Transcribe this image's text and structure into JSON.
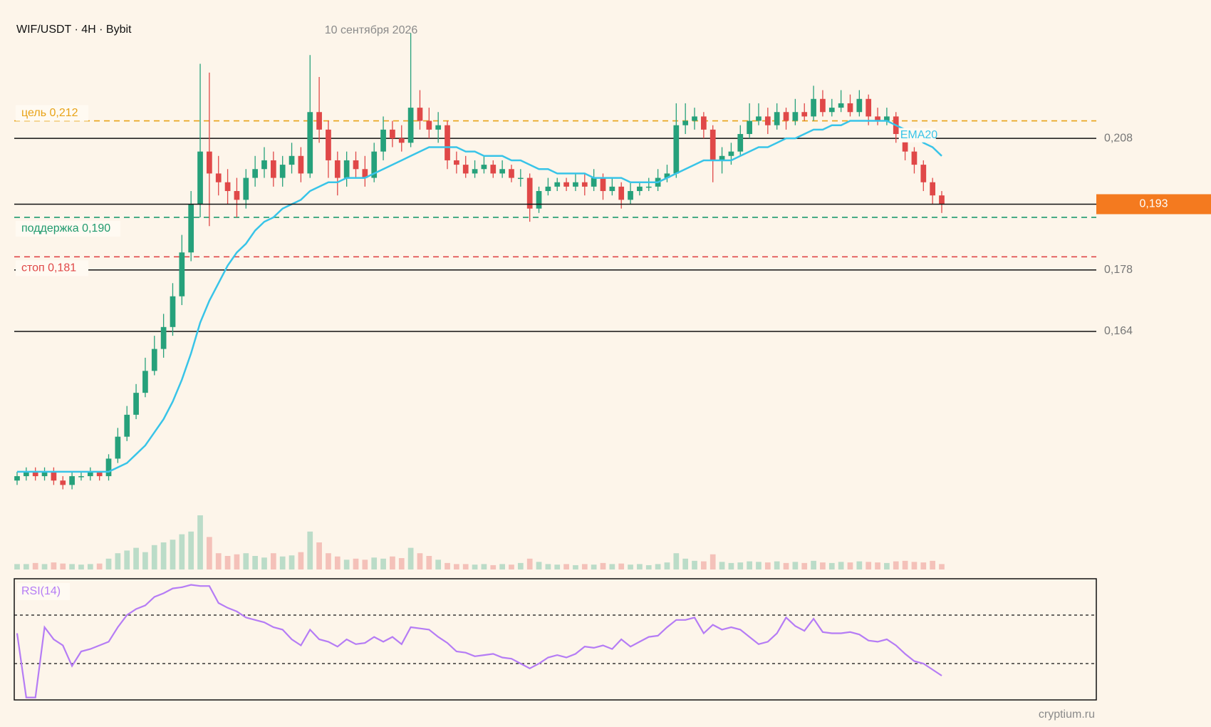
{
  "chart_data": {
    "type": "candlestick",
    "title": "WIF/USDT · 4H · Bybit",
    "date_label": "10 сентября 2026",
    "watermark": "cryptium.ru",
    "ylim": [
      0.125,
      0.235
    ],
    "yticks": [
      {
        "value": 0.208,
        "label": "0,208"
      },
      {
        "value": 0.178,
        "label": "0,178"
      },
      {
        "value": 0.164,
        "label": "0,164"
      }
    ],
    "last_price": {
      "value": 0.193,
      "label": "0,193",
      "color": "#f47a1f"
    },
    "levels": [
      {
        "label": "цель 0,212",
        "value": 0.212,
        "color": "#e8a317"
      },
      {
        "label": "поддержка 0,190",
        "value": 0.19,
        "color": "#1f9a6e"
      },
      {
        "label": "стоп 0,181",
        "value": 0.181,
        "color": "#e04848"
      }
    ],
    "up_color": "#26a17b",
    "down_color": "#e04848",
    "candles": [
      [
        0.13,
        0.132,
        0.129,
        0.131
      ],
      [
        0.131,
        0.133,
        0.13,
        0.132
      ],
      [
        0.132,
        0.133,
        0.13,
        0.131
      ],
      [
        0.131,
        0.133,
        0.13,
        0.132
      ],
      [
        0.132,
        0.133,
        0.129,
        0.13
      ],
      [
        0.13,
        0.131,
        0.128,
        0.129
      ],
      [
        0.129,
        0.132,
        0.128,
        0.131
      ],
      [
        0.131,
        0.132,
        0.13,
        0.131
      ],
      [
        0.131,
        0.133,
        0.13,
        0.132
      ],
      [
        0.132,
        0.132,
        0.13,
        0.131
      ],
      [
        0.131,
        0.136,
        0.13,
        0.135
      ],
      [
        0.135,
        0.142,
        0.134,
        0.14
      ],
      [
        0.14,
        0.147,
        0.139,
        0.145
      ],
      [
        0.145,
        0.152,
        0.144,
        0.15
      ],
      [
        0.15,
        0.158,
        0.149,
        0.155
      ],
      [
        0.155,
        0.163,
        0.154,
        0.16
      ],
      [
        0.16,
        0.168,
        0.158,
        0.165
      ],
      [
        0.165,
        0.175,
        0.163,
        0.172
      ],
      [
        0.172,
        0.186,
        0.17,
        0.182
      ],
      [
        0.182,
        0.196,
        0.18,
        0.193
      ],
      [
        0.193,
        0.225,
        0.19,
        0.205
      ],
      [
        0.205,
        0.223,
        0.188,
        0.2
      ],
      [
        0.2,
        0.204,
        0.195,
        0.198
      ],
      [
        0.198,
        0.201,
        0.193,
        0.196
      ],
      [
        0.196,
        0.199,
        0.19,
        0.194
      ],
      [
        0.194,
        0.201,
        0.192,
        0.199
      ],
      [
        0.199,
        0.204,
        0.197,
        0.201
      ],
      [
        0.201,
        0.206,
        0.199,
        0.203
      ],
      [
        0.203,
        0.205,
        0.197,
        0.199
      ],
      [
        0.199,
        0.204,
        0.197,
        0.202
      ],
      [
        0.202,
        0.207,
        0.2,
        0.204
      ],
      [
        0.204,
        0.206,
        0.198,
        0.2
      ],
      [
        0.2,
        0.227,
        0.199,
        0.214
      ],
      [
        0.214,
        0.222,
        0.207,
        0.21
      ],
      [
        0.21,
        0.212,
        0.199,
        0.203
      ],
      [
        0.203,
        0.205,
        0.195,
        0.199
      ],
      [
        0.199,
        0.205,
        0.197,
        0.203
      ],
      [
        0.203,
        0.205,
        0.199,
        0.201
      ],
      [
        0.201,
        0.204,
        0.197,
        0.199
      ],
      [
        0.199,
        0.207,
        0.198,
        0.205
      ],
      [
        0.205,
        0.213,
        0.203,
        0.21
      ],
      [
        0.21,
        0.212,
        0.206,
        0.208
      ],
      [
        0.208,
        0.211,
        0.205,
        0.207
      ],
      [
        0.207,
        0.232,
        0.206,
        0.215
      ],
      [
        0.215,
        0.219,
        0.21,
        0.212
      ],
      [
        0.212,
        0.215,
        0.208,
        0.21
      ],
      [
        0.21,
        0.214,
        0.207,
        0.211
      ],
      [
        0.211,
        0.212,
        0.201,
        0.203
      ],
      [
        0.203,
        0.205,
        0.2,
        0.202
      ],
      [
        0.202,
        0.204,
        0.199,
        0.2
      ],
      [
        0.2,
        0.203,
        0.199,
        0.201
      ],
      [
        0.201,
        0.204,
        0.2,
        0.202
      ],
      [
        0.202,
        0.203,
        0.199,
        0.2
      ],
      [
        0.2,
        0.203,
        0.199,
        0.201
      ],
      [
        0.201,
        0.202,
        0.198,
        0.199
      ],
      [
        0.199,
        0.201,
        0.197,
        0.199
      ],
      [
        0.199,
        0.2,
        0.189,
        0.192
      ],
      [
        0.192,
        0.197,
        0.191,
        0.196
      ],
      [
        0.196,
        0.199,
        0.195,
        0.197
      ],
      [
        0.197,
        0.199,
        0.196,
        0.198
      ],
      [
        0.198,
        0.199,
        0.196,
        0.197
      ],
      [
        0.197,
        0.2,
        0.196,
        0.198
      ],
      [
        0.198,
        0.2,
        0.195,
        0.197
      ],
      [
        0.197,
        0.201,
        0.196,
        0.199
      ],
      [
        0.199,
        0.2,
        0.194,
        0.196
      ],
      [
        0.196,
        0.199,
        0.195,
        0.197
      ],
      [
        0.197,
        0.198,
        0.192,
        0.194
      ],
      [
        0.194,
        0.198,
        0.193,
        0.196
      ],
      [
        0.196,
        0.198,
        0.195,
        0.197
      ],
      [
        0.197,
        0.199,
        0.196,
        0.197
      ],
      [
        0.197,
        0.201,
        0.196,
        0.199
      ],
      [
        0.199,
        0.202,
        0.198,
        0.2
      ],
      [
        0.2,
        0.216,
        0.199,
        0.211
      ],
      [
        0.211,
        0.216,
        0.209,
        0.212
      ],
      [
        0.212,
        0.215,
        0.21,
        0.213
      ],
      [
        0.213,
        0.214,
        0.208,
        0.21
      ],
      [
        0.21,
        0.211,
        0.198,
        0.203
      ],
      [
        0.203,
        0.206,
        0.2,
        0.204
      ],
      [
        0.204,
        0.207,
        0.202,
        0.205
      ],
      [
        0.205,
        0.211,
        0.204,
        0.209
      ],
      [
        0.209,
        0.216,
        0.208,
        0.212
      ],
      [
        0.212,
        0.216,
        0.211,
        0.213
      ],
      [
        0.213,
        0.215,
        0.209,
        0.211
      ],
      [
        0.211,
        0.216,
        0.21,
        0.214
      ],
      [
        0.214,
        0.215,
        0.21,
        0.212
      ],
      [
        0.212,
        0.217,
        0.211,
        0.214
      ],
      [
        0.214,
        0.216,
        0.212,
        0.213
      ],
      [
        0.213,
        0.22,
        0.212,
        0.217
      ],
      [
        0.217,
        0.219,
        0.213,
        0.214
      ],
      [
        0.214,
        0.217,
        0.213,
        0.215
      ],
      [
        0.215,
        0.219,
        0.214,
        0.216
      ],
      [
        0.216,
        0.218,
        0.213,
        0.214
      ],
      [
        0.214,
        0.219,
        0.213,
        0.217
      ],
      [
        0.217,
        0.218,
        0.211,
        0.213
      ],
      [
        0.213,
        0.215,
        0.211,
        0.212
      ],
      [
        0.212,
        0.215,
        0.211,
        0.213
      ],
      [
        0.213,
        0.214,
        0.207,
        0.209
      ],
      [
        0.209,
        0.21,
        0.203,
        0.205
      ],
      [
        0.205,
        0.206,
        0.2,
        0.202
      ],
      [
        0.202,
        0.203,
        0.196,
        0.198
      ],
      [
        0.198,
        0.199,
        0.193,
        0.195
      ],
      [
        0.195,
        0.196,
        0.191,
        0.193
      ]
    ],
    "volume": [
      1,
      1,
      1.2,
      1,
      1.3,
      1.1,
      1,
      0.9,
      1,
      1.1,
      2,
      3,
      3.5,
      4,
      3.2,
      4.5,
      5,
      5.5,
      6.5,
      7,
      10,
      6,
      3,
      2.5,
      2.8,
      3,
      2.5,
      2.2,
      3,
      2.4,
      2.6,
      3.2,
      7,
      5,
      3,
      2.4,
      1.8,
      2,
      1.8,
      2.2,
      2,
      2.4,
      2.1,
      4,
      3,
      2.5,
      1.8,
      1.2,
      1,
      1,
      0.9,
      1,
      0.8,
      1,
      0.9,
      1.2,
      2,
      1.4,
      1,
      0.9,
      1,
      0.8,
      1,
      0.9,
      1.2,
      1,
      1.1,
      0.9,
      1,
      0.8,
      1,
      1.3,
      3,
      2,
      1.6,
      1.5,
      2.8,
      1.4,
      1.2,
      1.3,
      1.5,
      1.4,
      1.3,
      1.5,
      1.2,
      1.4,
      1.2,
      1.6,
      1.3,
      1.2,
      1.4,
      1.3,
      1.5,
      1.4,
      1.3,
      1.2,
      1.5,
      1.6,
      1.4,
      1.3,
      1.6,
      1
    ],
    "ema": {
      "label": "EMA20",
      "color": "#38c4e8",
      "values": [
        0.132,
        0.132,
        0.132,
        0.132,
        0.132,
        0.132,
        0.132,
        0.132,
        0.132,
        0.132,
        0.132,
        0.133,
        0.134,
        0.136,
        0.138,
        0.141,
        0.144,
        0.148,
        0.153,
        0.159,
        0.166,
        0.171,
        0.175,
        0.179,
        0.182,
        0.184,
        0.187,
        0.189,
        0.19,
        0.192,
        0.193,
        0.194,
        0.196,
        0.197,
        0.198,
        0.198,
        0.199,
        0.199,
        0.199,
        0.2,
        0.201,
        0.202,
        0.203,
        0.204,
        0.205,
        0.206,
        0.206,
        0.206,
        0.206,
        0.205,
        0.205,
        0.204,
        0.204,
        0.204,
        0.203,
        0.203,
        0.202,
        0.201,
        0.201,
        0.2,
        0.2,
        0.2,
        0.2,
        0.199,
        0.199,
        0.199,
        0.199,
        0.198,
        0.198,
        0.198,
        0.198,
        0.199,
        0.2,
        0.201,
        0.202,
        0.203,
        0.203,
        0.203,
        0.203,
        0.204,
        0.205,
        0.206,
        0.206,
        0.207,
        0.208,
        0.208,
        0.209,
        0.21,
        0.21,
        0.211,
        0.211,
        0.212,
        0.212,
        0.212,
        0.212,
        0.212,
        0.211,
        0.21,
        0.209,
        0.207,
        0.206,
        0.204
      ]
    },
    "rsi": {
      "label": "RSI(14)",
      "color": "#b57cf5",
      "ylim": [
        0,
        100
      ],
      "levels": [
        70,
        30
      ],
      "values": [
        55,
        2,
        2,
        60,
        50,
        45,
        28,
        40,
        42,
        45,
        48,
        60,
        70,
        75,
        78,
        85,
        88,
        92,
        93,
        95,
        94,
        94,
        80,
        76,
        73,
        68,
        66,
        64,
        60,
        58,
        50,
        45,
        58,
        50,
        48,
        44,
        50,
        46,
        47,
        52,
        48,
        52,
        46,
        60,
        59,
        58,
        52,
        47,
        40,
        39,
        36,
        37,
        38,
        35,
        34,
        30,
        26,
        30,
        35,
        37,
        35,
        38,
        44,
        43,
        45,
        42,
        50,
        44,
        48,
        52,
        53,
        60,
        66,
        66,
        68,
        55,
        62,
        58,
        60,
        58,
        52,
        46,
        48,
        55,
        68,
        61,
        57,
        67,
        56,
        55,
        55,
        56,
        54,
        49,
        48,
        50,
        45,
        38,
        32,
        30,
        25,
        20
      ]
    }
  }
}
